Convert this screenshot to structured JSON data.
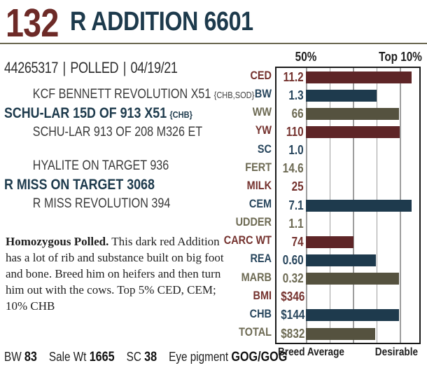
{
  "header": {
    "lot_number": "132",
    "title": "R ADDITION 6601"
  },
  "reg_line": {
    "parts": [
      "44265317",
      "POLLED",
      "04/19/21"
    ],
    "separator": "|"
  },
  "pedigree": {
    "groups": [
      {
        "lines": [
          {
            "text": "KCF BENNETT REVOLUTION X51",
            "suffix": "{CHB,SOD}",
            "emphasis": false
          },
          {
            "text": "SCHU-LAR 15D OF 913 X51",
            "suffix": "{CHB}",
            "emphasis": true
          },
          {
            "text": "SCHU-LAR 913 OF 208 M326 ET",
            "suffix": "",
            "emphasis": false
          }
        ]
      },
      {
        "lines": [
          {
            "text": "HYALITE ON TARGET 936",
            "suffix": "",
            "emphasis": false
          },
          {
            "text": "R MISS ON TARGET 3068",
            "suffix": "",
            "emphasis": true
          },
          {
            "text": "R MISS REVOLUTION 394",
            "suffix": "",
            "emphasis": false
          }
        ]
      }
    ]
  },
  "description": {
    "lead": "Homozygous Polled.",
    "body": " This dark red Addition has a lot of rib and substance built on big foot and bone. Breed him on heifers and then turn him out with the cows. Top 5% CED, CEM; 10% CHB"
  },
  "bottom_stats": [
    {
      "label": "BW",
      "value": "83"
    },
    {
      "label": "Sale Wt",
      "value": "1665"
    },
    {
      "label": "SC",
      "value": "38"
    },
    {
      "label": "Eye pigment",
      "value": "GOG/GOG"
    }
  ],
  "chart_data": {
    "type": "bar",
    "orientation": "horizontal",
    "title": "EPD percentile ranks",
    "top_axis": {
      "left": "50%",
      "right": "Top 10%"
    },
    "bottom_axis": {
      "left": "Breed Average",
      "right": "Desirable"
    },
    "gridline_fractions": [
      0,
      20.75,
      41.5,
      62.25,
      83
    ],
    "colors": {
      "maroon": "#5e2527",
      "navy": "#1e3a4d",
      "olive": "#55523f"
    },
    "label_colors": {
      "maroon": "#74312d",
      "navy": "#27455c",
      "olive": "#6d6a53"
    },
    "rows": [
      {
        "label": "CED",
        "value": "11.2",
        "color": "maroon",
        "bar_pct": 93
      },
      {
        "label": "BW",
        "value": "1.3",
        "color": "navy",
        "bar_pct": 62.5
      },
      {
        "label": "WW",
        "value": "66",
        "color": "olive",
        "bar_pct": 82
      },
      {
        "label": "YW",
        "value": "110",
        "color": "maroon",
        "bar_pct": 82.5
      },
      {
        "label": "SC",
        "value": "1.0",
        "color": "navy",
        "bar_pct": 0
      },
      {
        "label": "FERT",
        "value": "14.6",
        "color": "olive",
        "bar_pct": 0
      },
      {
        "label": "MILK",
        "value": "25",
        "color": "maroon",
        "bar_pct": 0
      },
      {
        "label": "CEM",
        "value": "7.1",
        "color": "navy",
        "bar_pct": 93
      },
      {
        "label": "UDDER",
        "value": "1.1",
        "color": "olive",
        "bar_pct": 0
      },
      {
        "label": "CARC WT",
        "value": "74",
        "color": "maroon",
        "bar_pct": 42
      },
      {
        "label": "REA",
        "value": "0.60",
        "color": "navy",
        "bar_pct": 62
      },
      {
        "label": "MARB",
        "value": "0.32",
        "color": "olive",
        "bar_pct": 82
      },
      {
        "label": "BMI",
        "value": "$346",
        "color": "maroon",
        "bar_pct": 0
      },
      {
        "label": "CHB",
        "value": "$144",
        "color": "navy",
        "bar_pct": 82
      },
      {
        "label": "TOTAL",
        "value": "$832",
        "color": "olive",
        "bar_pct": 61
      }
    ]
  }
}
